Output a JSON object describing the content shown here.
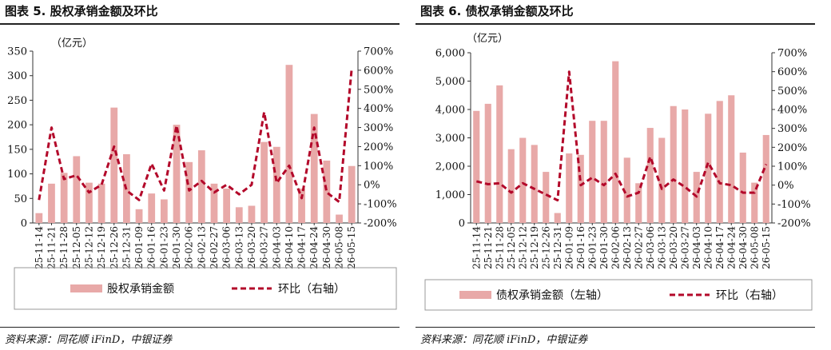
{
  "page": {
    "left_title": "图表 5. 股权承销金额及环比",
    "right_title": "图表 6. 债权承销金额及环比",
    "left_source": "资料来源：同花顺 iFinD，中银证券",
    "right_source": "资料来源：同花顺 iFinD，中银证券"
  },
  "colors": {
    "bar": "#e8a9a8",
    "line": "#b3082a",
    "axis": "#333333",
    "border": "#999999"
  },
  "chart_data": [
    {
      "type": "bar",
      "unit_label": "（亿元）",
      "categories": [
        "25-11-14",
        "25-11-21",
        "25-11-28",
        "25-12-05",
        "25-12-12",
        "25-12-19",
        "25-12-26",
        "25-12-31",
        "26-01-09",
        "26-01-16",
        "26-01-23",
        "26-01-30",
        "26-02-06",
        "26-02-13",
        "26-02-27",
        "26-03-06",
        "26-03-13",
        "26-03-20",
        "26-03-27",
        "26-04-03",
        "26-04-10",
        "26-04-17",
        "26-04-24",
        "26-04-30",
        "26-05-08",
        "26-05-15"
      ],
      "series": [
        {
          "name": "股权承销金额",
          "axis": "left",
          "type": "bar",
          "values": [
            20,
            80,
            102,
            136,
            82,
            80,
            235,
            140,
            28,
            60,
            48,
            200,
            124,
            148,
            80,
            70,
            32,
            35,
            165,
            155,
            322,
            70,
            222,
            127,
            17,
            116
          ]
        },
        {
          "name": "环比（右轴）",
          "axis": "right",
          "type": "line",
          "values": [
            -80,
            300,
            30,
            50,
            -40,
            0,
            200,
            -30,
            -80,
            110,
            -30,
            310,
            -30,
            20,
            -40,
            0,
            -50,
            0,
            380,
            10,
            100,
            -70,
            300,
            -40,
            -90,
            610
          ]
        }
      ],
      "yleft": {
        "min": 0,
        "max": 350,
        "ticks": [
          "0",
          "50",
          "100",
          "150",
          "200",
          "250",
          "300",
          "350"
        ]
      },
      "yright": {
        "min": -200,
        "max": 700,
        "ticks": [
          "-200%",
          "-100%",
          "0%",
          "100%",
          "200%",
          "300%",
          "400%",
          "500%",
          "600%",
          "700%"
        ]
      },
      "legend": [
        "股权承销金额",
        "环比（右轴）"
      ],
      "legend_position": "bottom"
    },
    {
      "type": "bar",
      "unit_label": "（亿元）",
      "categories": [
        "25-11-14",
        "25-11-21",
        "25-11-28",
        "25-12-05",
        "25-12-12",
        "25-12-19",
        "25-12-26",
        "25-12-31",
        "26-01-09",
        "26-01-16",
        "26-01-23",
        "26-01-30",
        "26-02-06",
        "26-02-13",
        "26-02-27",
        "26-03-06",
        "26-03-13",
        "26-03-20",
        "26-03-27",
        "26-04-03",
        "26-04-10",
        "26-04-17",
        "26-04-24",
        "26-04-30",
        "26-05-08",
        "26-05-15"
      ],
      "series": [
        {
          "name": "债权承销金额（左轴）",
          "axis": "left",
          "type": "bar",
          "values": [
            3950,
            4200,
            4850,
            2600,
            3000,
            2750,
            1800,
            350,
            2450,
            2400,
            3600,
            3600,
            5700,
            2300,
            1400,
            3350,
            3000,
            4120,
            4000,
            1800,
            3850,
            4300,
            4500,
            2480,
            1420,
            3100
          ]
        },
        {
          "name": "环比（右轴）",
          "axis": "right",
          "type": "line",
          "values": [
            20,
            5,
            10,
            -40,
            10,
            -20,
            -50,
            -80,
            600,
            0,
            40,
            0,
            60,
            -60,
            -40,
            150,
            -20,
            30,
            -10,
            -60,
            120,
            10,
            0,
            -40,
            -40,
            110
          ]
        }
      ],
      "yleft": {
        "min": 0,
        "max": 6000,
        "ticks": [
          "0",
          "1,000",
          "2,000",
          "3,000",
          "4,000",
          "5,000",
          "6,000"
        ]
      },
      "yright": {
        "min": -200,
        "max": 700,
        "ticks": [
          "-200%",
          "-100%",
          "0%",
          "100%",
          "200%",
          "300%",
          "400%",
          "500%",
          "600%",
          "700%"
        ]
      },
      "legend": [
        "债权承销金额（左轴）",
        "环比（右轴）"
      ],
      "legend_position": "bottom"
    }
  ]
}
